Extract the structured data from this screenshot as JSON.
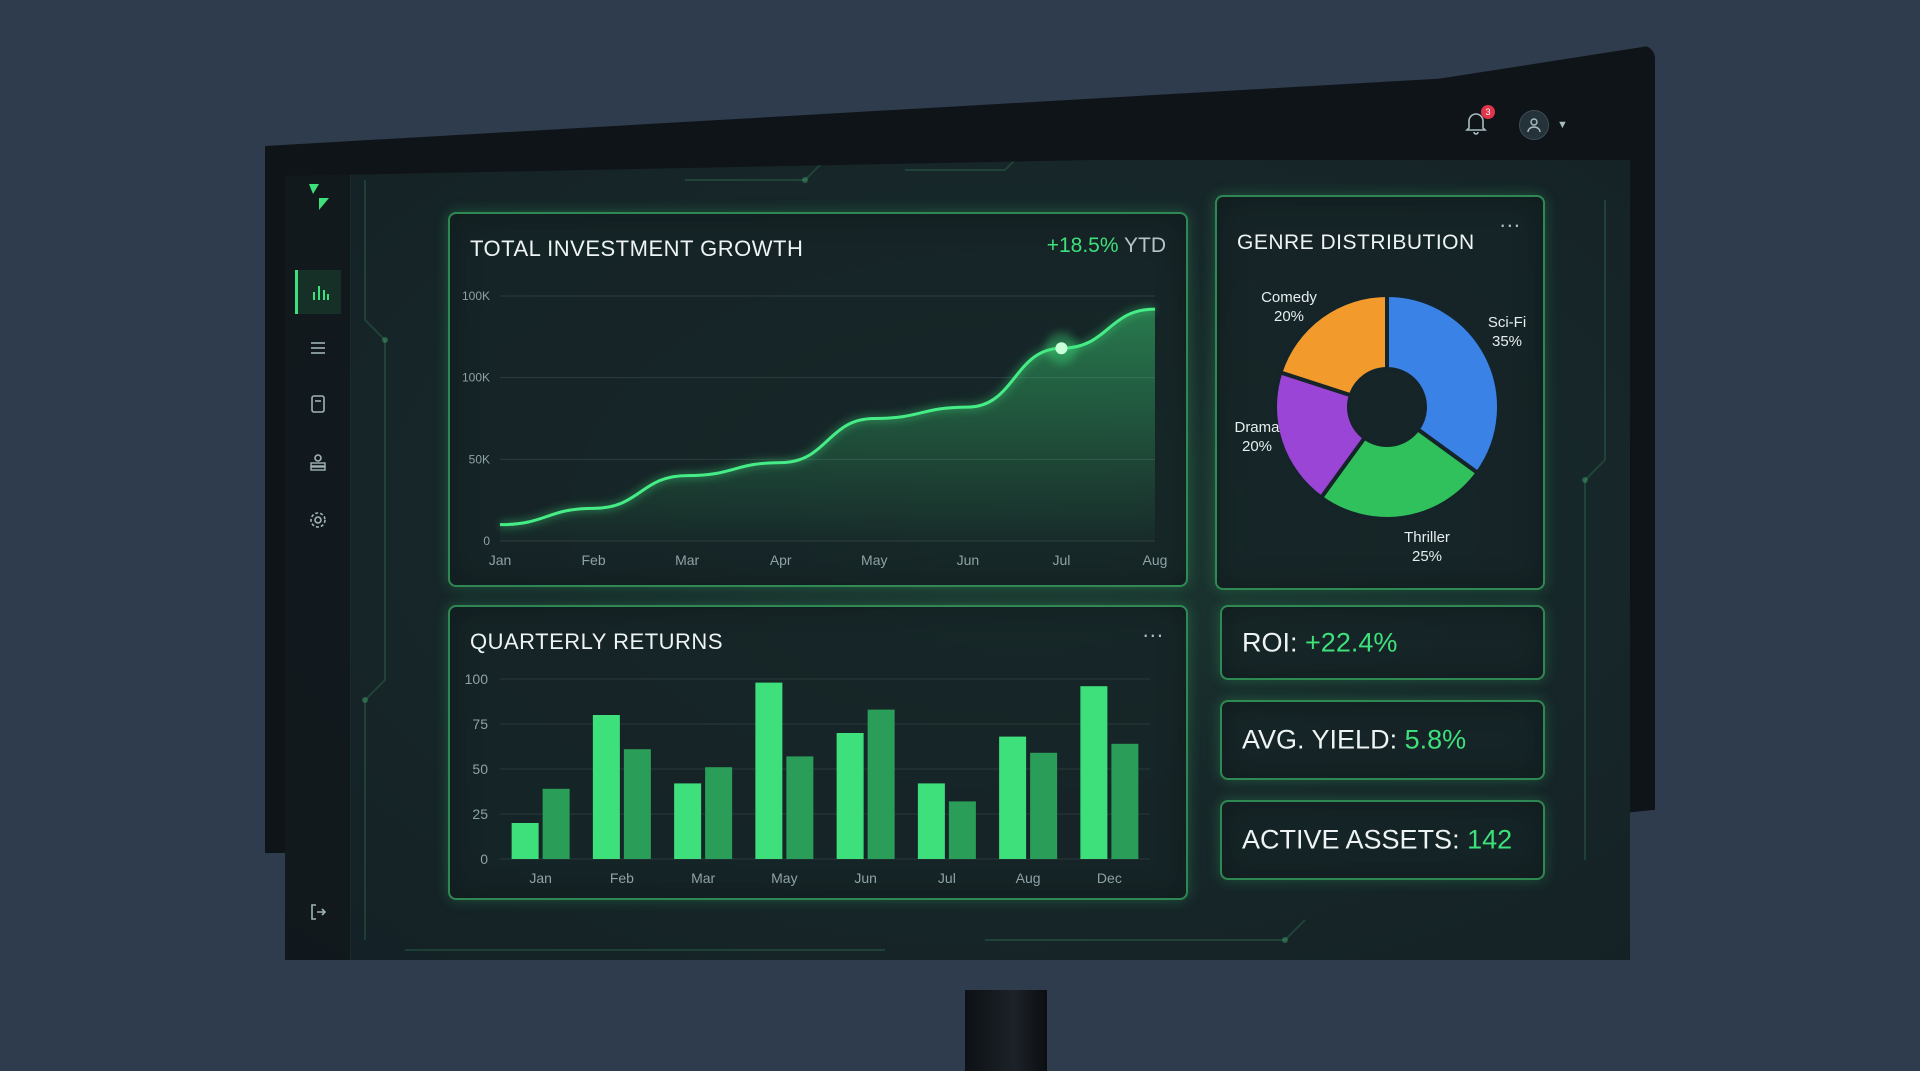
{
  "header": {
    "notification_count": "3",
    "bell_icon": "bell-icon",
    "avatar_icon": "user-icon"
  },
  "sidebar": {
    "items": [
      {
        "icon": "bar-chart-icon",
        "glyph": "📊",
        "active": true
      },
      {
        "icon": "list-icon",
        "glyph": "☰",
        "active": false
      },
      {
        "icon": "document-icon",
        "glyph": "▢",
        "active": false
      },
      {
        "icon": "user-stack-icon",
        "glyph": "⛁",
        "active": false
      },
      {
        "icon": "gear-icon",
        "glyph": "⚙",
        "active": false
      }
    ],
    "logout_icon": "logout-icon"
  },
  "growth": {
    "title": "TOTAL INVESTMENT GROWTH",
    "change_value": "+18.5%",
    "change_suffix": "YTD"
  },
  "quarterly": {
    "title": "QUARTERLY RETURNS",
    "more": "..."
  },
  "genre": {
    "title": "GENRE DISTRIBUTION",
    "more": "..."
  },
  "kpis": {
    "roi_label": "ROI:",
    "roi_value": "+22.4%",
    "yield_label": "AVG. YIELD:",
    "yield_value": "5.8%",
    "assets_label": "ACTIVE ASSETS:",
    "assets_value": "142"
  },
  "colors": {
    "accent": "#3ee07b",
    "bar_primary": "#3ee07b",
    "bar_secondary": "#2a9e58",
    "comedy": "#f39a2d",
    "scifi": "#3b82e6",
    "drama": "#9b45d6",
    "thriller": "#30c05c"
  },
  "chart_data": [
    {
      "type": "area",
      "title": "TOTAL INVESTMENT GROWTH",
      "x": [
        "Jan",
        "Feb",
        "Mar",
        "Apr",
        "May",
        "Jun",
        "Jul",
        "Aug"
      ],
      "y_tick_labels": [
        "0",
        "50K",
        "100K",
        "100K"
      ],
      "ylim": [
        0,
        150000
      ],
      "values": [
        10000,
        20000,
        40000,
        48000,
        75000,
        82000,
        118000,
        142000
      ],
      "highlight_index": 6,
      "grid": true
    },
    {
      "type": "bar",
      "title": "QUARTERLY RETURNS",
      "categories": [
        "Jan",
        "Feb",
        "Mar",
        "May",
        "Jun",
        "Jul",
        "Aug",
        "Dec"
      ],
      "ylim": [
        0,
        100
      ],
      "y_ticks": [
        0,
        25,
        50,
        75,
        100
      ],
      "series": [
        {
          "values": [
            20,
            80,
            42,
            98,
            70,
            42,
            68,
            96
          ]
        },
        {
          "values": [
            39,
            61,
            51,
            57,
            83,
            32,
            59,
            64
          ]
        }
      ],
      "grid": true
    },
    {
      "type": "pie",
      "title": "GENRE DISTRIBUTION",
      "donut": true,
      "slices": [
        {
          "label": "Sci-Fi",
          "value": 35,
          "display": "35%",
          "color": "#3b82e6"
        },
        {
          "label": "Thriller",
          "value": 25,
          "display": "25%",
          "color": "#30c05c"
        },
        {
          "label": "Drama",
          "value": 20,
          "display": "20%",
          "color": "#9b45d6"
        },
        {
          "label": "Comedy",
          "value": 20,
          "display": "20%",
          "color": "#f39a2d"
        }
      ]
    }
  ]
}
